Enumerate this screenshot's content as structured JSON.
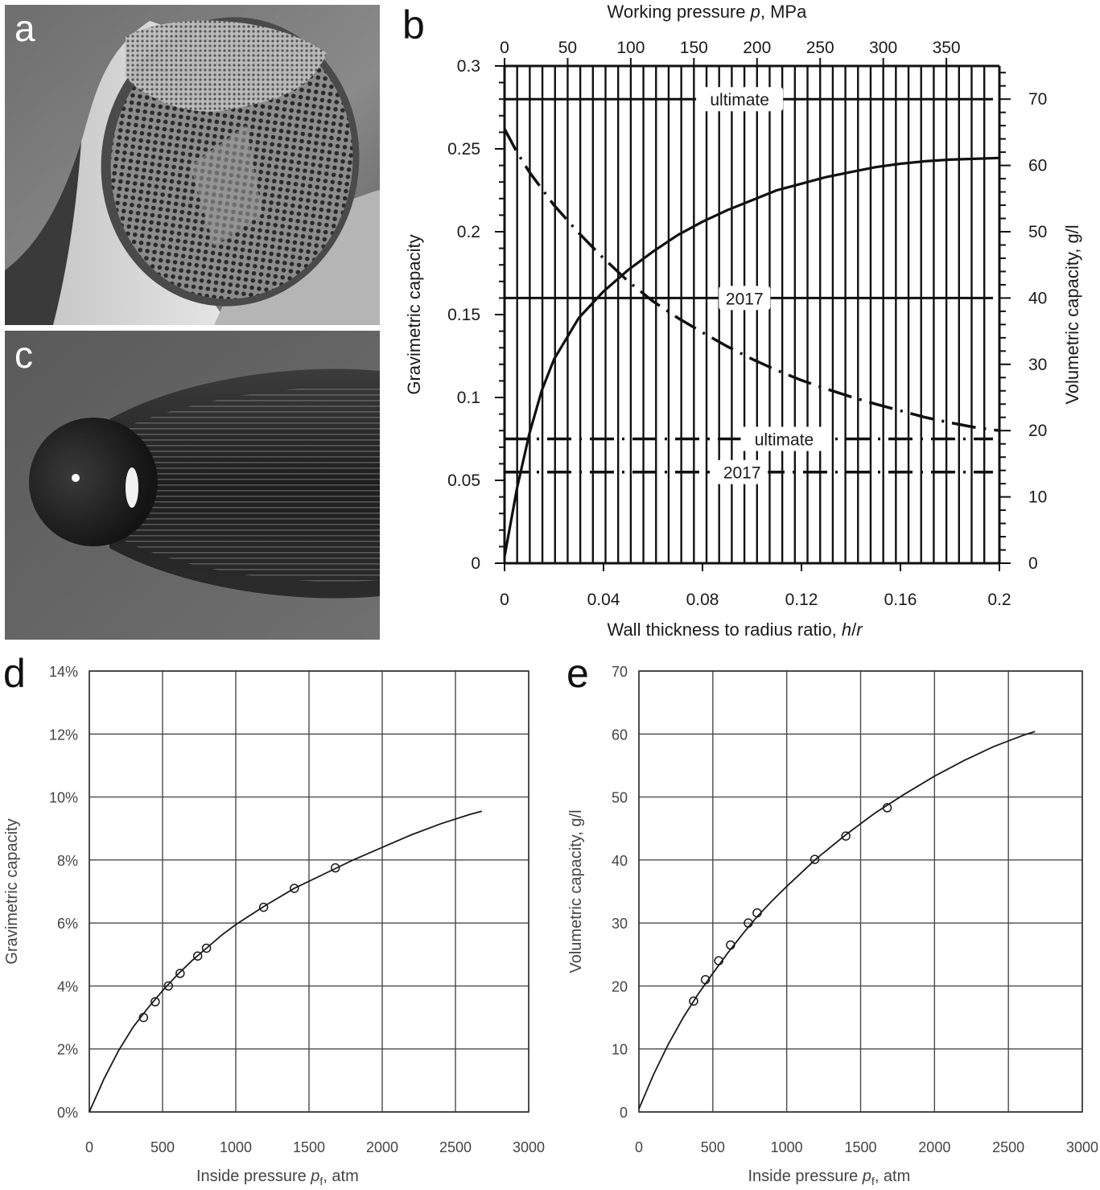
{
  "panels": {
    "a": {
      "letter": "a"
    },
    "b": {
      "letter": "b"
    },
    "c": {
      "letter": "c"
    },
    "d": {
      "letter": "d"
    },
    "e": {
      "letter": "e"
    }
  },
  "chart_data": [
    {
      "id": "b",
      "type": "line",
      "xlabel": "Wall thickness to radius ratio, h/r",
      "xlabel_parts": [
        "Wall thickness to radius ratio, ",
        "h",
        "/",
        "r"
      ],
      "top_xlabel": "Working pressure p, MPa",
      "top_xlabel_parts": [
        "Working pressure ",
        "p",
        ", MPa"
      ],
      "ylabel_left": "Gravimetric capacity",
      "ylabel_right": "Volumetric capacity, g/l",
      "xlim": [
        0,
        0.2
      ],
      "ylim_left": [
        0,
        0.3
      ],
      "ylim_right": [
        0,
        75
      ],
      "top_xlim": [
        0,
        392
      ],
      "x_ticks": [
        0,
        0.04,
        0.08,
        0.12,
        0.16,
        0.2
      ],
      "x_tick_labels": [
        "0",
        "0.04",
        "0.08",
        "0.12",
        "0.16",
        "0.2"
      ],
      "y_left_ticks": [
        0,
        0.05,
        0.1,
        0.15,
        0.2,
        0.25,
        0.3
      ],
      "y_left_tick_labels": [
        "0",
        "0.05",
        "0.1",
        "0.15",
        "0.2",
        "0.25",
        "0.3"
      ],
      "y_right_ticks": [
        0,
        10,
        20,
        30,
        40,
        50,
        60,
        70
      ],
      "y_right_tick_labels": [
        "0",
        "10",
        "20",
        "30",
        "40",
        "50",
        "60",
        "70"
      ],
      "top_ticks": [
        0,
        50,
        100,
        150,
        200,
        250,
        300,
        350
      ],
      "top_tick_labels": [
        "0",
        "50",
        "100",
        "150",
        "200",
        "250",
        "300",
        "350"
      ],
      "top_minor_tick_values": [
        0,
        10,
        20,
        30,
        40,
        50,
        60,
        70,
        80,
        90,
        100,
        110,
        120,
        130,
        140,
        150,
        160,
        170,
        180,
        190,
        200,
        210,
        220,
        230,
        240,
        250,
        260,
        270,
        280,
        290,
        300,
        310,
        320,
        330,
        340,
        350,
        360,
        370,
        380
      ],
      "grid": "vertical lines at every 10 MPa of working pressure",
      "series": [
        {
          "axis": "left",
          "style": "solid",
          "x": [
            0,
            0.005,
            0.01,
            0.015,
            0.02,
            0.03,
            0.04,
            0.05,
            0.06,
            0.07,
            0.08,
            0.09,
            0.1,
            0.11,
            0.12,
            0.13,
            0.14,
            0.15,
            0.16,
            0.17,
            0.18,
            0.19,
            0.2
          ],
          "values": [
            0.004,
            0.045,
            0.078,
            0.104,
            0.123,
            0.148,
            0.164,
            0.177,
            0.188,
            0.198,
            0.206,
            0.213,
            0.219,
            0.225,
            0.229,
            0.233,
            0.236,
            0.239,
            0.241,
            0.2425,
            0.2435,
            0.244,
            0.2445
          ]
        },
        {
          "axis": "right",
          "style": "dash-dot",
          "x": [
            0,
            0.005,
            0.01,
            0.02,
            0.03,
            0.04,
            0.05,
            0.06,
            0.07,
            0.08,
            0.09,
            0.1,
            0.11,
            0.12,
            0.13,
            0.14,
            0.15,
            0.16,
            0.17,
            0.18,
            0.19,
            0.2
          ],
          "values": [
            65.5,
            62.0,
            59.0,
            54.0,
            49.8,
            46.0,
            42.5,
            39.5,
            37.0,
            34.8,
            32.7,
            30.8,
            29.1,
            27.6,
            26.3,
            25.1,
            24.0,
            23.0,
            22.0,
            21.2,
            20.5,
            20.0
          ]
        }
      ],
      "reference_lines": [
        {
          "label": "ultimate",
          "axis": "left",
          "value": 0.28,
          "style": "solid",
          "label_x": 0.095
        },
        {
          "label": "2017",
          "axis": "left",
          "value": 0.16,
          "style": "solid",
          "label_x": 0.097
        },
        {
          "label": "ultimate",
          "axis": "left",
          "value": 0.075,
          "style": "dash-dot",
          "label_x": 0.113
        },
        {
          "label": "2017",
          "axis": "left",
          "value": 0.055,
          "style": "dash-dot",
          "label_x": 0.096
        }
      ]
    },
    {
      "id": "d",
      "type": "line",
      "xlabel": "Inside pressure pf, atm",
      "xlabel_parts": [
        "Inside pressure ",
        "p",
        "f",
        ", atm"
      ],
      "ylabel": "Gravimetric capacity",
      "xlim": [
        0,
        3000
      ],
      "ylim": [
        0,
        14
      ],
      "x_ticks": [
        0,
        500,
        1000,
        1500,
        2000,
        2500,
        3000
      ],
      "x_tick_labels": [
        "0",
        "500",
        "1000",
        "1500",
        "2000",
        "2500",
        "3000"
      ],
      "y_ticks": [
        0,
        2,
        4,
        6,
        8,
        10,
        12,
        14
      ],
      "y_tick_labels": [
        "0%",
        "2%",
        "4%",
        "6%",
        "8%",
        "10%",
        "12%",
        "14%"
      ],
      "grid": true,
      "series": [
        {
          "style": "solid",
          "x": [
            0,
            100,
            200,
            300,
            400,
            500,
            600,
            700,
            800,
            900,
            1000,
            1200,
            1400,
            1600,
            1800,
            2000,
            2200,
            2400,
            2600,
            2680
          ],
          "values": [
            0.0,
            1.05,
            1.95,
            2.7,
            3.3,
            3.85,
            4.35,
            4.8,
            5.2,
            5.6,
            5.95,
            6.55,
            7.1,
            7.55,
            8.0,
            8.4,
            8.8,
            9.15,
            9.45,
            9.55
          ]
        },
        {
          "style": "markers",
          "marker": "open-circle",
          "x": [
            370,
            450,
            540,
            620,
            740,
            800,
            1190,
            1400,
            1680
          ],
          "values": [
            3.0,
            3.5,
            4.0,
            4.4,
            4.95,
            5.2,
            6.5,
            7.1,
            7.75
          ]
        }
      ]
    },
    {
      "id": "e",
      "type": "line",
      "xlabel": "Inside pressure pf, atm",
      "xlabel_parts": [
        "Inside pressure ",
        "p",
        "f",
        ", atm"
      ],
      "ylabel": "Volumetric capacity, g/l",
      "xlim": [
        0,
        3000
      ],
      "ylim": [
        0,
        70
      ],
      "x_ticks": [
        0,
        500,
        1000,
        1500,
        2000,
        2500,
        3000
      ],
      "x_tick_labels": [
        "0",
        "500",
        "1000",
        "1500",
        "2000",
        "2500",
        "3000"
      ],
      "y_ticks": [
        0,
        10,
        20,
        30,
        40,
        50,
        60,
        70
      ],
      "y_tick_labels": [
        "0",
        "10",
        "20",
        "30",
        "40",
        "50",
        "60",
        "70"
      ],
      "grid": true,
      "series": [
        {
          "style": "solid",
          "x": [
            0,
            100,
            200,
            300,
            400,
            500,
            600,
            700,
            800,
            900,
            1000,
            1200,
            1400,
            1600,
            1800,
            2000,
            2200,
            2400,
            2600,
            2680
          ],
          "values": [
            0.5,
            6.0,
            10.8,
            15.0,
            18.7,
            22.0,
            25.2,
            28.2,
            31.0,
            33.5,
            35.8,
            40.2,
            44.0,
            47.5,
            50.5,
            53.3,
            55.8,
            58.0,
            59.8,
            60.4
          ]
        },
        {
          "style": "markers",
          "marker": "open-circle",
          "x": [
            370,
            450,
            540,
            620,
            740,
            800,
            1190,
            1400,
            1680
          ],
          "values": [
            17.6,
            21.0,
            24.0,
            26.5,
            30.0,
            31.6,
            40.1,
            43.8,
            48.3
          ]
        }
      ]
    }
  ]
}
